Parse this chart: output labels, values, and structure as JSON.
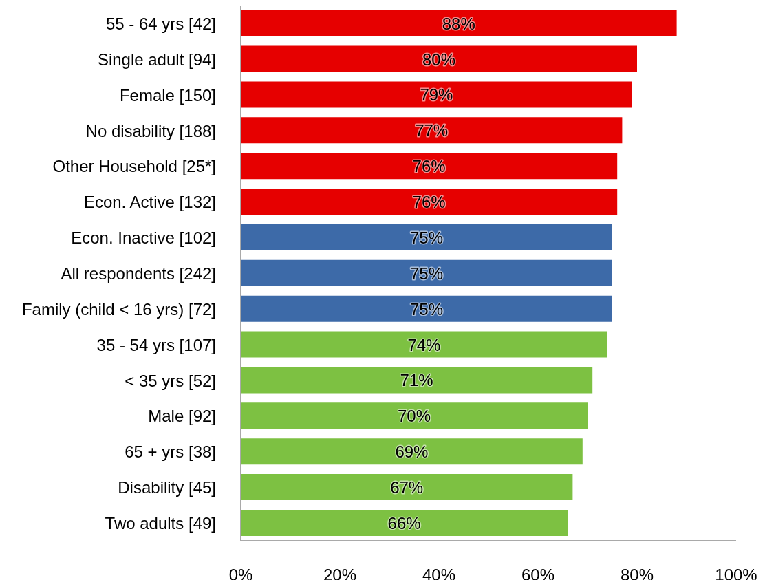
{
  "chart_data": {
    "type": "bar",
    "orientation": "horizontal",
    "categories": [
      "55 - 64 yrs [42]",
      "Single adult [94]",
      "Female [150]",
      "No disability [188]",
      "Other Household [25*]",
      "Econ. Active [132]",
      "Econ. Inactive [102]",
      "All respondents [242]",
      "Family (child < 16 yrs) [72]",
      "35 - 54 yrs [107]",
      "< 35 yrs [52]",
      "Male [92]",
      "65 + yrs [38]",
      "Disability [45]",
      "Two adults [49]"
    ],
    "values": [
      88,
      80,
      79,
      77,
      76,
      76,
      75,
      75,
      75,
      74,
      71,
      70,
      69,
      67,
      66
    ],
    "value_labels": [
      "88%",
      "80%",
      "79%",
      "77%",
      "76%",
      "76%",
      "75%",
      "75%",
      "75%",
      "74%",
      "71%",
      "70%",
      "69%",
      "67%",
      "66%"
    ],
    "colors": [
      "#e60000",
      "#e60000",
      "#e60000",
      "#e60000",
      "#e60000",
      "#e60000",
      "#3d6aa8",
      "#3d6aa8",
      "#3d6aa8",
      "#7dc142",
      "#7dc142",
      "#7dc142",
      "#7dc142",
      "#7dc142",
      "#7dc142"
    ],
    "xlim": [
      0,
      100
    ],
    "xticks": [
      {
        "value": 0,
        "label": "0%"
      },
      {
        "value": 20,
        "label": "20%"
      },
      {
        "value": 40,
        "label": "40%"
      },
      {
        "value": 60,
        "label": "60%"
      },
      {
        "value": 80,
        "label": "80%"
      },
      {
        "value": 100,
        "label": "100%"
      }
    ]
  }
}
